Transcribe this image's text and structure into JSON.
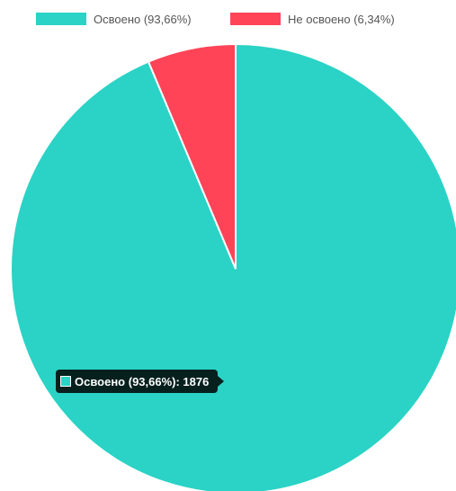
{
  "chart_data": {
    "type": "pie",
    "categories": [
      "Освоено (93,66%)",
      "Не освоено (6,34%)"
    ],
    "values": [
      93.66,
      6.34
    ],
    "colors": [
      "#2ad3c5",
      "#ff4458"
    ],
    "legend_position": "top",
    "title": "",
    "tooltip": {
      "label": "Освоено (93,66%): 1876",
      "color": "#2ad3c5"
    }
  }
}
